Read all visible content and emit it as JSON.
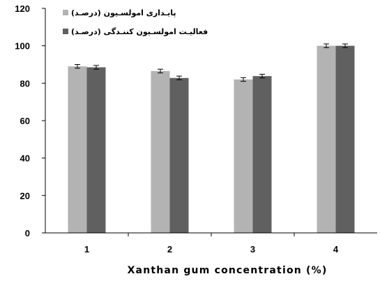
{
  "chart_data": {
    "type": "bar",
    "title": "",
    "xlabel": "Xanthan gum concentration (%)",
    "ylabel": "",
    "categories": [
      "1",
      "2",
      "3",
      "4"
    ],
    "ylim": [
      0,
      120
    ],
    "yticks": [
      0,
      20,
      40,
      60,
      80,
      100,
      120
    ],
    "grid": false,
    "legend_position": "top-left",
    "series": [
      {
        "name": "پایـداری امولسـیون (درصـد)",
        "values": [
          89.0,
          86.5,
          82.0,
          100.0
        ],
        "errors": [
          1.0,
          1.0,
          1.0,
          1.0
        ],
        "color": "#b3b3b3"
      },
      {
        "name": "فعالیـت امولسـیون کننـدگی (درصـد)",
        "values": [
          88.5,
          82.8,
          83.8,
          100.0
        ],
        "errors": [
          1.0,
          1.0,
          1.0,
          1.0
        ],
        "color": "#606060"
      }
    ]
  }
}
